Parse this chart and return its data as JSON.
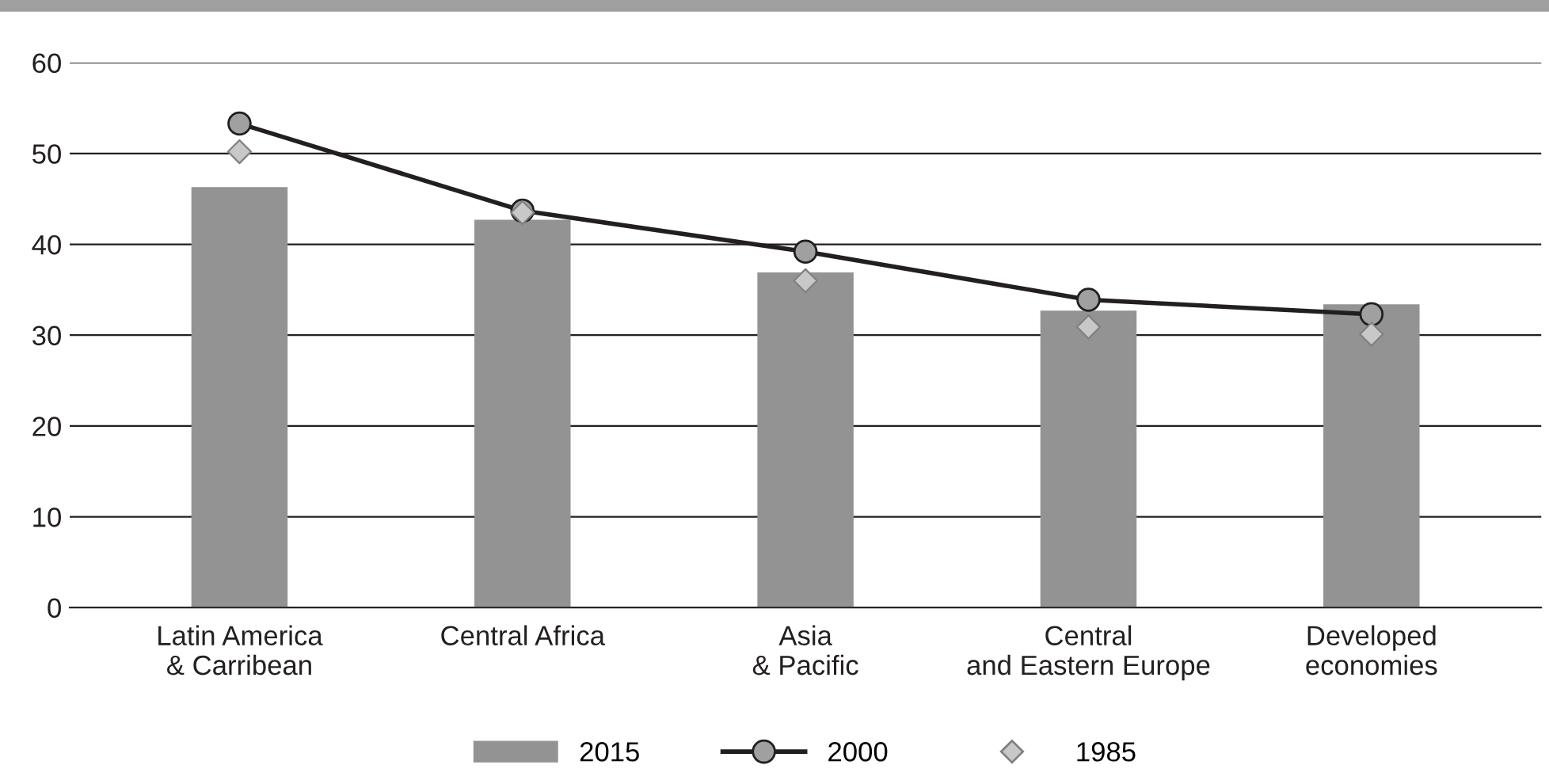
{
  "chart_data": {
    "type": "bar",
    "categories": [
      "Latin America\n& Carribean",
      "Central Africa",
      "Asia\n& Pacific",
      "Central\nand Eastern Europe",
      "Developed\neconomies"
    ],
    "series": [
      {
        "name": "2015",
        "color": "#939393",
        "values": [
          46.3,
          42.7,
          36.9,
          32.7,
          33.4
        ]
      },
      {
        "name": "2000",
        "type": "line",
        "color": "#231f20",
        "marker": "circle",
        "values": [
          53.3,
          43.7,
          39.2,
          33.9,
          32.3
        ]
      },
      {
        "name": "1985",
        "type": "scatter",
        "color": "#c8c8c8",
        "marker": "diamond",
        "values": [
          50.2,
          43.5,
          36.0,
          30.9,
          30.1
        ]
      }
    ],
    "ylim": [
      0,
      60
    ],
    "yticks": [
      0,
      10,
      20,
      30,
      40,
      50,
      60
    ],
    "grid": "y",
    "legend": "bottom"
  }
}
